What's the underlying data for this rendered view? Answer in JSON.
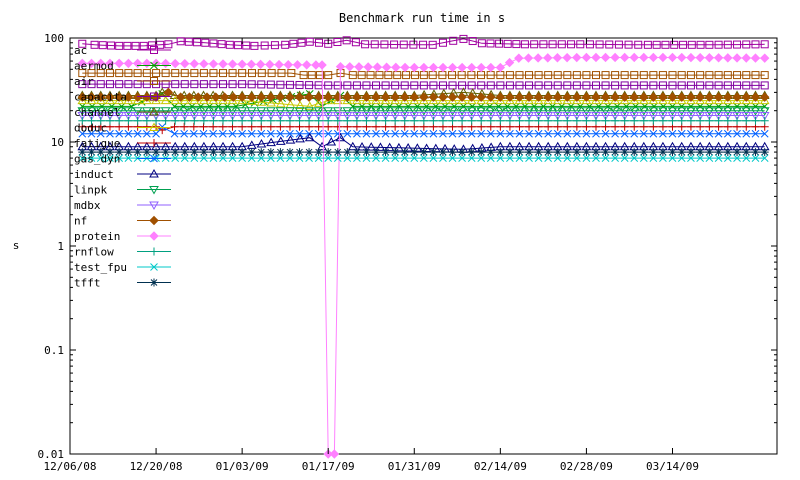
{
  "chart_data": {
    "type": "line",
    "title": "Benchmark run time in s",
    "ylabel": "s",
    "xlabel": "",
    "yscale": "log",
    "ylim": [
      0.01,
      100
    ],
    "yticks": [
      {
        "value": 0.01,
        "label": "0.01"
      },
      {
        "value": 0.1,
        "label": "0.1"
      },
      {
        "value": 1,
        "label": "1"
      },
      {
        "value": 10,
        "label": "10"
      },
      {
        "value": 100,
        "label": "100"
      }
    ],
    "xlim": [
      "2008-12-06",
      "2009-03-31"
    ],
    "xticks": [
      {
        "value": "2008-12-06",
        "label": "12/06/08"
      },
      {
        "value": "2008-12-20",
        "label": "12/20/08"
      },
      {
        "value": "2009-01-03",
        "label": "01/03/09"
      },
      {
        "value": "2009-01-17",
        "label": "01/17/09"
      },
      {
        "value": "2009-01-31",
        "label": "01/31/09"
      },
      {
        "value": "2009-02-14",
        "label": "02/14/09"
      },
      {
        "value": "2009-02-28",
        "label": "02/28/09"
      },
      {
        "value": "2009-03-14",
        "label": "03/14/09"
      }
    ],
    "grid": false,
    "legend_position": "top-left",
    "series": [
      {
        "name": "ac",
        "color": "#a000a0",
        "marker": "square",
        "points": [
          [
            "2008-12-08",
            88
          ],
          [
            "2008-12-10",
            86
          ],
          [
            "2008-12-14",
            84
          ],
          [
            "2008-12-18",
            84
          ],
          [
            "2008-12-22",
            87
          ],
          [
            "2008-12-24",
            93
          ],
          [
            "2008-12-28",
            90
          ],
          [
            "2009-01-01",
            86
          ],
          [
            "2009-01-05",
            84
          ],
          [
            "2009-01-10",
            86
          ],
          [
            "2009-01-14",
            92
          ],
          [
            "2009-01-17",
            88
          ],
          [
            "2009-01-20",
            95
          ],
          [
            "2009-01-23",
            87
          ],
          [
            "2009-02-03",
            86
          ],
          [
            "2009-02-08",
            98
          ],
          [
            "2009-02-11",
            89
          ],
          [
            "2009-02-18",
            87
          ],
          [
            "2009-02-27",
            87
          ],
          [
            "2009-03-10",
            86
          ],
          [
            "2009-03-20",
            86
          ],
          [
            "2009-03-29",
            87
          ]
        ]
      },
      {
        "name": "aermod",
        "color": "#00a000",
        "marker": "x",
        "points": [
          [
            "2008-12-08",
            22
          ],
          [
            "2008-12-16",
            22
          ],
          [
            "2008-12-21",
            29
          ],
          [
            "2008-12-23",
            22
          ],
          [
            "2009-01-02",
            22
          ],
          [
            "2009-01-14",
            29
          ],
          [
            "2009-01-16",
            22
          ],
          [
            "2009-01-19",
            28
          ],
          [
            "2009-01-21",
            22
          ],
          [
            "2009-02-08",
            22
          ],
          [
            "2009-02-18",
            22
          ],
          [
            "2009-03-29",
            22
          ]
        ]
      },
      {
        "name": "air",
        "color": "#a05000",
        "marker": "square",
        "points": [
          [
            "2008-12-08",
            46
          ],
          [
            "2008-12-20",
            46
          ],
          [
            "2009-01-03",
            46
          ],
          [
            "2009-01-11",
            46
          ],
          [
            "2009-01-13",
            44
          ],
          [
            "2009-01-17",
            44
          ],
          [
            "2009-01-19",
            46
          ],
          [
            "2009-01-21",
            44
          ],
          [
            "2009-02-03",
            44
          ],
          [
            "2009-02-14",
            44
          ],
          [
            "2009-02-28",
            44
          ],
          [
            "2009-03-14",
            44
          ],
          [
            "2009-03-29",
            44
          ]
        ]
      },
      {
        "name": "capacita",
        "color": "#8000a0",
        "marker": "square",
        "points": [
          [
            "2008-12-08",
            36
          ],
          [
            "2008-12-20",
            36
          ],
          [
            "2009-01-03",
            36
          ],
          [
            "2009-01-17",
            35
          ],
          [
            "2009-01-31",
            35
          ],
          [
            "2009-02-14",
            35
          ],
          [
            "2009-02-28",
            35
          ],
          [
            "2009-03-14",
            35
          ],
          [
            "2009-03-29",
            35
          ]
        ]
      },
      {
        "name": "channel",
        "color": "#606000",
        "marker": "triangle",
        "points": [
          [
            "2008-12-08",
            28
          ],
          [
            "2008-12-20",
            28
          ],
          [
            "2008-12-21",
            30
          ],
          [
            "2008-12-23",
            28
          ],
          [
            "2009-01-03",
            28
          ],
          [
            "2009-01-17",
            28
          ],
          [
            "2009-01-31",
            28
          ],
          [
            "2009-02-08",
            30
          ],
          [
            "2009-02-14",
            28
          ],
          [
            "2009-02-28",
            28
          ],
          [
            "2009-03-14",
            28
          ],
          [
            "2009-03-29",
            28
          ]
        ]
      },
      {
        "name": "doduc",
        "color": "#c8c800",
        "marker": "triangle",
        "points": [
          [
            "2008-12-08",
            25
          ],
          [
            "2008-12-20",
            25
          ],
          [
            "2009-01-03",
            25
          ],
          [
            "2009-01-14",
            22
          ],
          [
            "2009-01-17",
            25
          ],
          [
            "2009-01-31",
            25
          ],
          [
            "2009-02-14",
            25
          ],
          [
            "2009-02-28",
            25
          ],
          [
            "2009-03-14",
            25
          ],
          [
            "2009-03-29",
            25
          ]
        ]
      },
      {
        "name": "fatigue",
        "color": "#c00000",
        "marker": "plus",
        "points": [
          [
            "2008-12-08",
            14
          ],
          [
            "2008-12-20",
            14
          ],
          [
            "2008-12-21",
            13
          ],
          [
            "2008-12-23",
            14
          ],
          [
            "2009-01-03",
            14
          ],
          [
            "2009-01-17",
            14
          ],
          [
            "2009-01-31",
            14
          ],
          [
            "2009-02-14",
            14
          ],
          [
            "2009-02-28",
            14
          ],
          [
            "2009-03-14",
            14
          ],
          [
            "2009-03-29",
            14
          ]
        ]
      },
      {
        "name": "gas_dyn",
        "color": "#0060ff",
        "marker": "x",
        "points": [
          [
            "2008-12-08",
            12
          ],
          [
            "2008-12-20",
            12
          ],
          [
            "2008-12-21",
            14
          ],
          [
            "2008-12-23",
            12
          ],
          [
            "2009-01-03",
            12
          ],
          [
            "2009-01-17",
            12
          ],
          [
            "2009-01-31",
            12
          ],
          [
            "2009-02-14",
            12
          ],
          [
            "2009-02-28",
            12
          ],
          [
            "2009-03-14",
            12
          ],
          [
            "2009-03-29",
            12
          ]
        ]
      },
      {
        "name": "induct",
        "color": "#000080",
        "marker": "triangle",
        "points": [
          [
            "2008-12-08",
            9
          ],
          [
            "2008-12-20",
            9
          ],
          [
            "2009-01-03",
            9
          ],
          [
            "2009-01-14",
            11
          ],
          [
            "2009-01-16",
            9
          ],
          [
            "2009-01-19",
            11
          ],
          [
            "2009-01-21",
            9
          ],
          [
            "2009-02-08",
            8.5
          ],
          [
            "2009-02-14",
            9
          ],
          [
            "2009-02-28",
            9
          ],
          [
            "2009-03-14",
            9
          ],
          [
            "2009-03-29",
            9
          ]
        ]
      },
      {
        "name": "linpk",
        "color": "#00a050",
        "marker": "triangle-down",
        "points": [
          [
            "2008-12-08",
            20
          ],
          [
            "2008-12-20",
            20
          ],
          [
            "2009-01-03",
            20
          ],
          [
            "2009-01-17",
            20
          ],
          [
            "2009-01-31",
            20
          ],
          [
            "2009-02-14",
            20
          ],
          [
            "2009-02-28",
            20
          ],
          [
            "2009-03-14",
            20
          ],
          [
            "2009-03-29",
            20
          ]
        ]
      },
      {
        "name": "mdbx",
        "color": "#9060ff",
        "marker": "triangle-down",
        "points": [
          [
            "2008-12-08",
            18
          ],
          [
            "2008-12-20",
            18
          ],
          [
            "2009-01-03",
            18
          ],
          [
            "2009-01-17",
            18
          ],
          [
            "2009-01-31",
            18
          ],
          [
            "2009-02-14",
            18
          ],
          [
            "2009-02-28",
            18
          ],
          [
            "2009-03-14",
            18
          ],
          [
            "2009-03-29",
            18
          ]
        ]
      },
      {
        "name": "nf",
        "color": "#a05000",
        "marker": "diamond",
        "points": [
          [
            "2008-12-08",
            27
          ],
          [
            "2008-12-20",
            27
          ],
          [
            "2008-12-22",
            30
          ],
          [
            "2008-12-24",
            27
          ],
          [
            "2009-01-03",
            27
          ],
          [
            "2009-01-17",
            27
          ],
          [
            "2009-01-31",
            27
          ],
          [
            "2009-02-14",
            27
          ],
          [
            "2009-02-28",
            27
          ],
          [
            "2009-03-14",
            27
          ],
          [
            "2009-03-29",
            27
          ]
        ]
      },
      {
        "name": "protein",
        "color": "#ff80ff",
        "marker": "diamond",
        "points": [
          [
            "2008-12-08",
            57
          ],
          [
            "2008-12-20",
            57
          ],
          [
            "2009-01-03",
            56
          ],
          [
            "2009-01-15",
            55
          ],
          [
            "2009-01-16",
            55
          ],
          [
            "2009-01-17",
            0.01
          ],
          [
            "2009-01-18",
            0.01
          ],
          [
            "2009-01-19",
            53
          ],
          [
            "2009-01-31",
            52
          ],
          [
            "2009-02-14",
            52
          ],
          [
            "2009-02-17",
            64
          ],
          [
            "2009-02-28",
            65
          ],
          [
            "2009-03-14",
            65
          ],
          [
            "2009-03-29",
            64
          ]
        ]
      },
      {
        "name": "rnflow",
        "color": "#00a080",
        "marker": "plus",
        "points": [
          [
            "2008-12-08",
            16
          ],
          [
            "2008-12-20",
            16
          ],
          [
            "2009-01-03",
            16
          ],
          [
            "2009-01-17",
            16
          ],
          [
            "2009-01-31",
            16
          ],
          [
            "2009-02-14",
            16
          ],
          [
            "2009-02-28",
            16
          ],
          [
            "2009-03-14",
            16
          ],
          [
            "2009-03-29",
            16
          ]
        ]
      },
      {
        "name": "test_fpu",
        "color": "#00c8c8",
        "marker": "x",
        "points": [
          [
            "2008-12-08",
            7
          ],
          [
            "2008-12-20",
            7
          ],
          [
            "2009-01-03",
            7
          ],
          [
            "2009-01-17",
            7
          ],
          [
            "2009-01-31",
            7
          ],
          [
            "2009-02-14",
            7
          ],
          [
            "2009-02-28",
            7
          ],
          [
            "2009-03-14",
            7
          ],
          [
            "2009-03-29",
            7
          ]
        ]
      },
      {
        "name": "tfft",
        "color": "#003050",
        "marker": "star",
        "points": [
          [
            "2008-12-08",
            8
          ],
          [
            "2008-12-20",
            8
          ],
          [
            "2009-01-03",
            8
          ],
          [
            "2009-01-17",
            8
          ],
          [
            "2009-01-31",
            8
          ],
          [
            "2009-02-14",
            8
          ],
          [
            "2009-02-28",
            8
          ],
          [
            "2009-03-14",
            8
          ],
          [
            "2009-03-29",
            8
          ]
        ]
      }
    ]
  }
}
